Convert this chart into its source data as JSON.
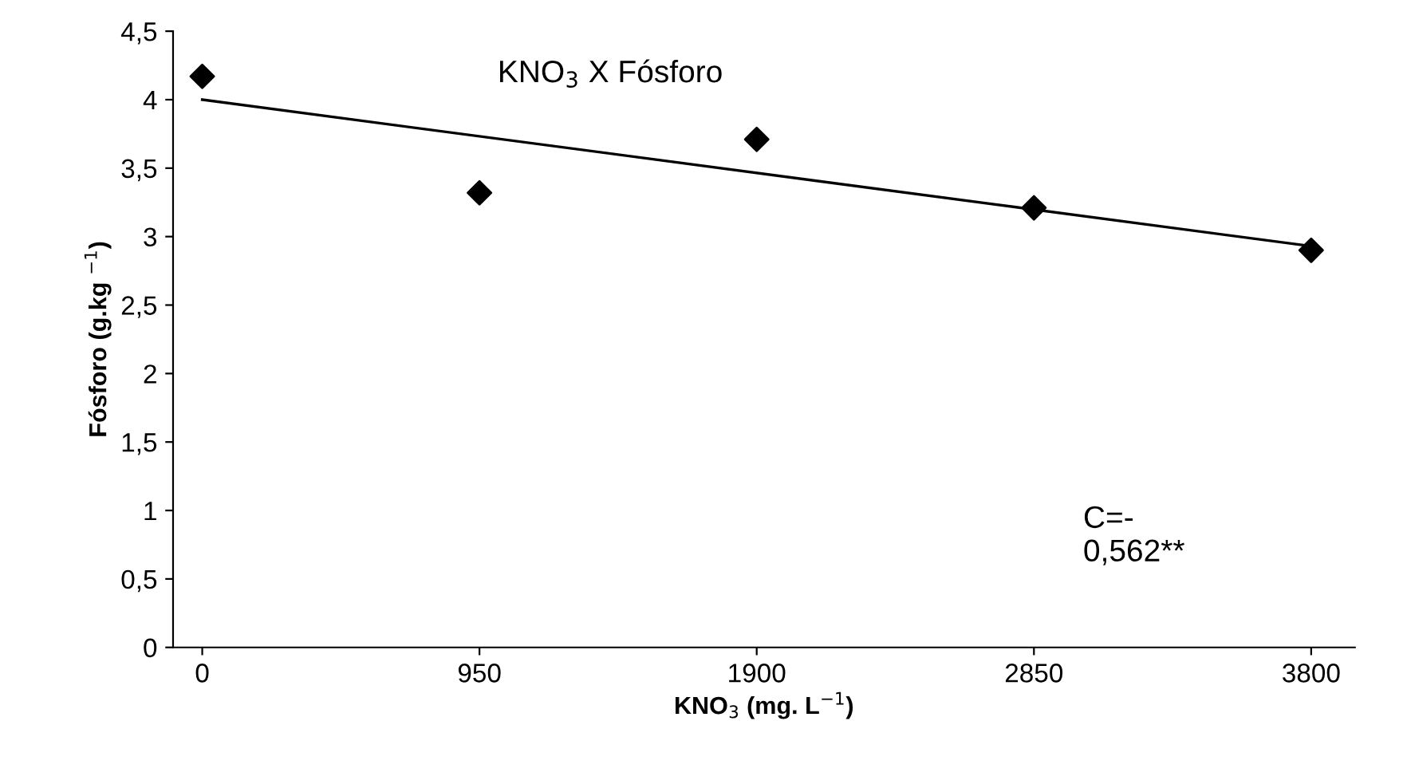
{
  "chart_data": {
    "type": "scatter",
    "title": "KNO$_{3}$ X Fósforo",
    "xlabel": "KNO$_{3}$ (mg. L$^{−1}$)",
    "ylabel": "Fósforo (g.kg $^{−1}$)",
    "annotations": [
      "C=-\n0,562**"
    ],
    "series": [
      {
        "color": "#000000",
        "marker": "diamond",
        "x": [
          0,
          950,
          1900,
          2850,
          3800
        ],
        "values": [
          4.17,
          3.32,
          3.71,
          3.21,
          2.9
        ]
      },
      {
        "type": "line",
        "color": "#000000",
        "marker": "none",
        "x": [
          0,
          3800
        ],
        "values": [
          4.0,
          2.93
        ]
      }
    ],
    "xlim": [
      -100,
      3950
    ],
    "xticks": [
      0,
      950,
      1900,
      2850,
      3800
    ],
    "ylim": [
      0,
      4.5
    ],
    "yticks": [
      0,
      {
        "value": 0.5,
        "label": "0,5"
      },
      1,
      {
        "value": 1.5,
        "label": "1,5"
      },
      2,
      {
        "value": 2.5,
        "label": "2,5"
      },
      3,
      {
        "value": 3.5,
        "label": "3,5"
      },
      4,
      {
        "value": 4.5,
        "label": "4,5"
      }
    ],
    "grid": false,
    "legend": false
  }
}
